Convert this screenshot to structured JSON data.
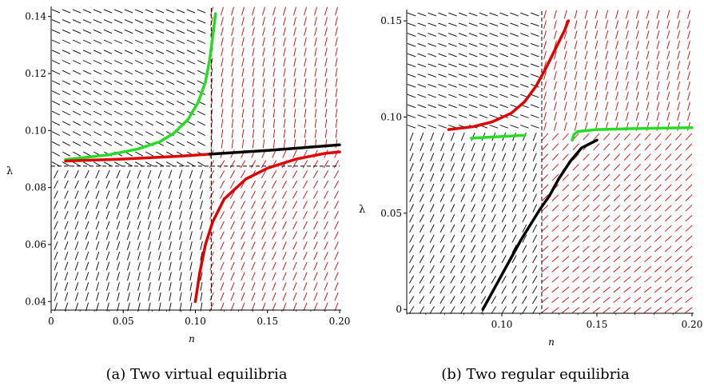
{
  "chart_data": [
    {
      "type": "line",
      "caption": "(a) Two virtual equilibria",
      "xlabel": "n",
      "ylabel": "λ",
      "xlim": [
        0,
        0.2
      ],
      "ylim": [
        0.037,
        0.143
      ],
      "xticks": [
        "0",
        "0.05",
        "0.10",
        "0.15",
        "0.20"
      ],
      "xtick_values": [
        0,
        0.05,
        0.1,
        0.15,
        0.2
      ],
      "yticks": [
        "0.04",
        "0.06",
        "0.08",
        "0.10",
        "0.12",
        "0.14"
      ],
      "ytick_values": [
        0.04,
        0.06,
        0.08,
        0.1,
        0.12,
        0.14
      ],
      "discontinuity_lines": {
        "x": [
          0.111
        ],
        "y": [
          0.0875
        ]
      },
      "field": {
        "left_color": "#000000",
        "right_color": "#e00000",
        "split_x": 0.111
      },
      "series": [
        {
          "color": "#22dd22",
          "x": [
            0.01,
            0.04,
            0.06,
            0.075,
            0.085,
            0.095,
            0.102,
            0.107,
            0.11,
            0.112,
            0.114
          ],
          "y": [
            0.0898,
            0.0915,
            0.0935,
            0.096,
            0.099,
            0.104,
            0.11,
            0.117,
            0.125,
            0.133,
            0.141
          ]
        },
        {
          "color": "#e00000",
          "x": [
            0.01,
            0.05,
            0.09,
            0.11
          ],
          "y": [
            0.0893,
            0.09,
            0.091,
            0.0917
          ]
        },
        {
          "color": "#000000",
          "x": [
            0.11,
            0.15,
            0.2
          ],
          "y": [
            0.0917,
            0.093,
            0.095
          ]
        },
        {
          "color": "#e00000",
          "x": [
            0.1,
            0.103,
            0.107,
            0.112,
            0.12,
            0.135,
            0.15,
            0.17,
            0.19,
            0.2
          ],
          "y": [
            0.04,
            0.05,
            0.06,
            0.068,
            0.076,
            0.083,
            0.0868,
            0.09,
            0.092,
            0.0925
          ]
        }
      ]
    },
    {
      "type": "line",
      "caption": "(b) Two regular equilibria",
      "xlabel": "n",
      "ylabel": "λ",
      "xlim": [
        0.05,
        0.2
      ],
      "ylim": [
        -0.002,
        0.155
      ],
      "xticks": [
        "0.10",
        "0.15",
        "0.20"
      ],
      "xtick_values": [
        0.1,
        0.15,
        0.2
      ],
      "yticks": [
        "0",
        "0.05",
        "0.10",
        "0.15"
      ],
      "ytick_values": [
        0,
        0.05,
        0.1,
        0.15
      ],
      "discontinuity_lines": {
        "x": [
          0.121
        ]
      },
      "field": {
        "left_color": "#000000",
        "right_color": "#e00000",
        "split_x": 0.121
      },
      "series": [
        {
          "color": "#e00000",
          "x": [
            0.072,
            0.085,
            0.095,
            0.105,
            0.112,
            0.118,
            0.123,
            0.128,
            0.133,
            0.135
          ],
          "y": [
            0.0935,
            0.095,
            0.0975,
            0.102,
            0.108,
            0.116,
            0.125,
            0.135,
            0.145,
            0.15
          ]
        },
        {
          "color": "#22dd22",
          "x": [
            0.084,
            0.112
          ],
          "y": [
            0.089,
            0.0905
          ]
        },
        {
          "color": "#22dd22",
          "x": [
            0.137,
            0.138,
            0.14,
            0.15,
            0.17,
            0.2
          ],
          "y": [
            0.088,
            0.091,
            0.0925,
            0.0935,
            0.094,
            0.0945
          ]
        },
        {
          "color": "#000000",
          "x": [
            0.09,
            0.1,
            0.11,
            0.12,
            0.125,
            0.13,
            0.136,
            0.142,
            0.15
          ],
          "y": [
            0.0,
            0.018,
            0.036,
            0.052,
            0.059,
            0.068,
            0.077,
            0.084,
            0.088
          ]
        }
      ]
    }
  ]
}
